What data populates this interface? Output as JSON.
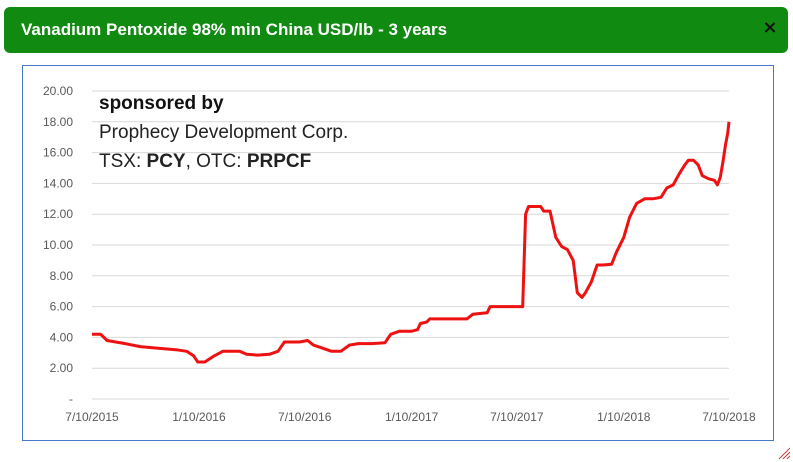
{
  "window": {
    "title": "Vanadium Pentoxide 98% min China USD/lb - 3 years",
    "close_symbol": "×",
    "close_icon": "close-icon",
    "resize_icon": "resize-grip-icon"
  },
  "sponsor": {
    "line1": "sponsored by",
    "line2": "Prophecy Development Corp.",
    "line3_prefix": "TSX: ",
    "line3_ticker1": "PCY",
    "line3_mid": ", OTC: ",
    "line3_ticker2": "PRPCF"
  },
  "colors": {
    "header_bg": "#108a10",
    "series_line": "#ee1111",
    "frame_border": "#4a78c8",
    "gridline": "#d9d9d9"
  },
  "chart_data": {
    "type": "line",
    "title": "Vanadium Pentoxide 98% min China USD/lb - 3 years",
    "xlabel": "",
    "ylabel": "",
    "ylim": [
      0,
      20
    ],
    "yticks": [
      0,
      2,
      4,
      6,
      8,
      10,
      12,
      14,
      16,
      18,
      20
    ],
    "ytick_labels": [
      "-",
      "2.00",
      "4.00",
      "6.00",
      "8.00",
      "10.00",
      "12.00",
      "14.00",
      "16.00",
      "18.00",
      "20.00"
    ],
    "xlim": [
      "2015-07-10",
      "2018-07-10"
    ],
    "xticks": [
      "2015-07-10",
      "2016-01-10",
      "2016-07-10",
      "2017-01-10",
      "2017-07-10",
      "2018-01-10",
      "2018-07-10"
    ],
    "xtick_labels": [
      "7/10/2015",
      "1/10/2016",
      "7/10/2016",
      "1/10/2017",
      "7/10/2017",
      "1/10/2018",
      "7/10/2018"
    ],
    "grid": "horizontal",
    "legend": "none",
    "series": [
      {
        "points": [
          [
            "2015-07-10",
            4.2
          ],
          [
            "2015-07-25",
            4.2
          ],
          [
            "2015-08-05",
            3.8
          ],
          [
            "2015-08-20",
            3.7
          ],
          [
            "2015-09-05",
            3.6
          ],
          [
            "2015-10-01",
            3.4
          ],
          [
            "2015-11-01",
            3.3
          ],
          [
            "2015-12-01",
            3.2
          ],
          [
            "2015-12-20",
            3.1
          ],
          [
            "2016-01-01",
            2.8
          ],
          [
            "2016-01-08",
            2.4
          ],
          [
            "2016-01-20",
            2.4
          ],
          [
            "2016-02-05",
            2.8
          ],
          [
            "2016-02-20",
            3.1
          ],
          [
            "2016-03-20",
            3.1
          ],
          [
            "2016-04-01",
            2.9
          ],
          [
            "2016-04-20",
            2.85
          ],
          [
            "2016-05-10",
            2.9
          ],
          [
            "2016-05-25",
            3.1
          ],
          [
            "2016-06-05",
            3.7
          ],
          [
            "2016-07-01",
            3.7
          ],
          [
            "2016-07-15",
            3.8
          ],
          [
            "2016-07-25",
            3.5
          ],
          [
            "2016-08-10",
            3.3
          ],
          [
            "2016-08-25",
            3.1
          ],
          [
            "2016-09-10",
            3.1
          ],
          [
            "2016-09-25",
            3.5
          ],
          [
            "2016-10-10",
            3.6
          ],
          [
            "2016-11-01",
            3.6
          ],
          [
            "2016-11-25",
            3.65
          ],
          [
            "2016-12-05",
            4.2
          ],
          [
            "2016-12-20",
            4.4
          ],
          [
            "2017-01-10",
            4.4
          ],
          [
            "2017-01-20",
            4.5
          ],
          [
            "2017-01-25",
            4.9
          ],
          [
            "2017-02-05",
            5.0
          ],
          [
            "2017-02-10",
            5.2
          ],
          [
            "2017-04-15",
            5.2
          ],
          [
            "2017-04-25",
            5.5
          ],
          [
            "2017-05-20",
            5.6
          ],
          [
            "2017-05-25",
            6.0
          ],
          [
            "2017-07-10",
            6.0
          ],
          [
            "2017-07-20",
            6.0
          ],
          [
            "2017-07-25",
            12.0
          ],
          [
            "2017-07-30",
            12.5
          ],
          [
            "2017-08-20",
            12.5
          ],
          [
            "2017-08-25",
            12.2
          ],
          [
            "2017-09-05",
            12.2
          ],
          [
            "2017-09-15",
            10.5
          ],
          [
            "2017-09-25",
            9.9
          ],
          [
            "2017-10-05",
            9.7
          ],
          [
            "2017-10-15",
            9.0
          ],
          [
            "2017-10-22",
            6.9
          ],
          [
            "2017-10-30",
            6.6
          ],
          [
            "2017-11-05",
            6.9
          ],
          [
            "2017-11-15",
            7.6
          ],
          [
            "2017-11-25",
            8.7
          ],
          [
            "2017-12-05",
            8.7
          ],
          [
            "2017-12-20",
            8.75
          ],
          [
            "2017-12-28",
            9.5
          ],
          [
            "2018-01-10",
            10.5
          ],
          [
            "2018-01-20",
            11.8
          ],
          [
            "2018-02-01",
            12.7
          ],
          [
            "2018-02-15",
            13.0
          ],
          [
            "2018-03-01",
            13.0
          ],
          [
            "2018-03-15",
            13.1
          ],
          [
            "2018-03-25",
            13.7
          ],
          [
            "2018-04-05",
            13.9
          ],
          [
            "2018-04-15",
            14.6
          ],
          [
            "2018-04-25",
            15.2
          ],
          [
            "2018-05-01",
            15.5
          ],
          [
            "2018-05-10",
            15.5
          ],
          [
            "2018-05-18",
            15.2
          ],
          [
            "2018-05-25",
            14.5
          ],
          [
            "2018-06-05",
            14.3
          ],
          [
            "2018-06-15",
            14.2
          ],
          [
            "2018-06-20",
            13.9
          ],
          [
            "2018-06-25",
            14.4
          ],
          [
            "2018-06-30",
            15.5
          ],
          [
            "2018-07-04",
            16.5
          ],
          [
            "2018-07-08",
            17.3
          ],
          [
            "2018-07-10",
            18.0
          ]
        ]
      }
    ]
  }
}
